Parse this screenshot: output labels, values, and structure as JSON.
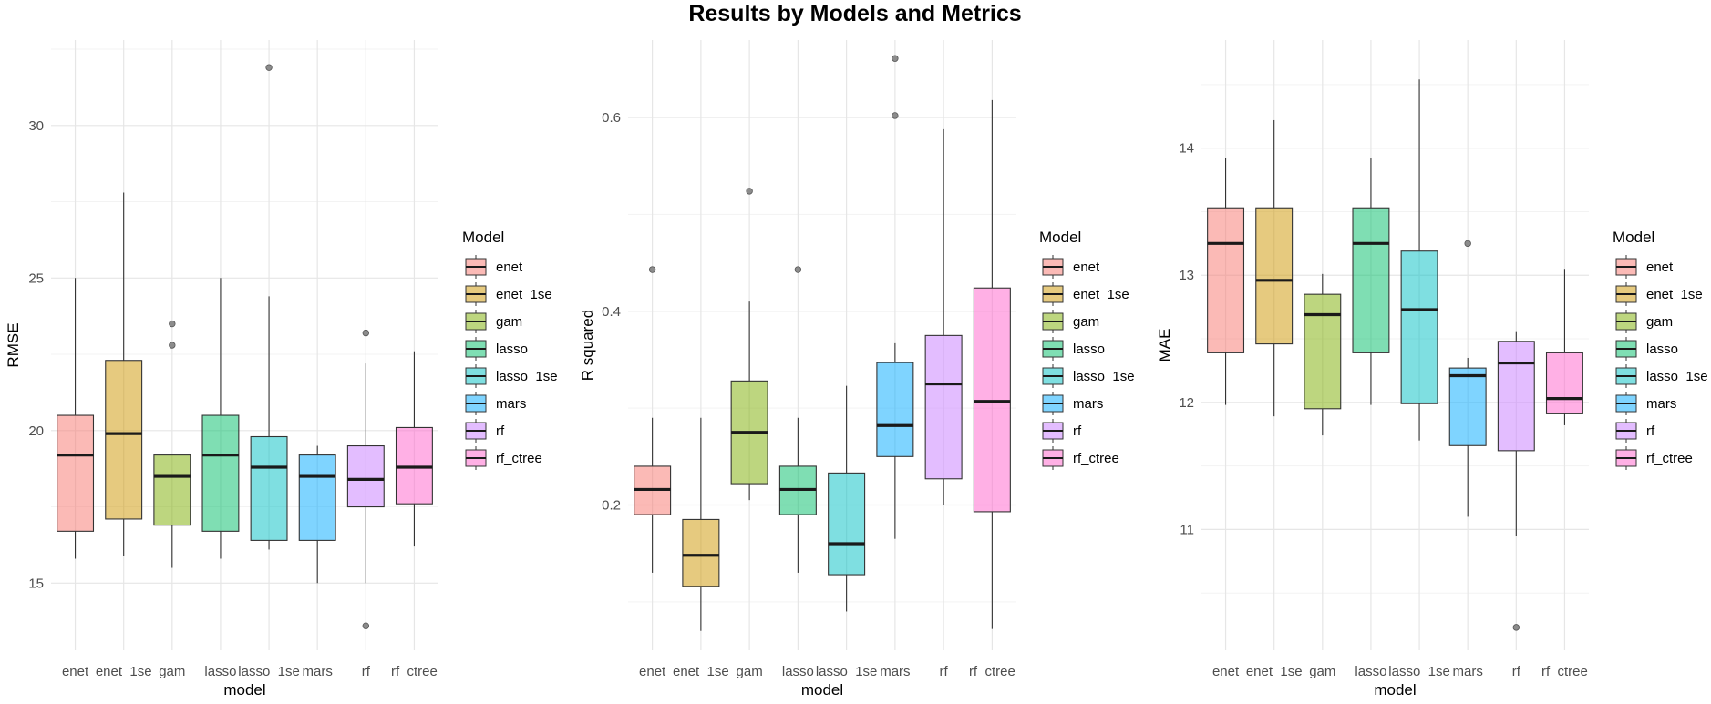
{
  "title": "Results by Models and Metrics",
  "legend_title": "Model",
  "colors": {
    "enet": "#F8766D",
    "enet_1se": "#CD9600",
    "gam": "#7CAE00",
    "lasso": "#00BE67",
    "lasso_1se": "#00BFC4",
    "mars": "#00A9FF",
    "rf": "#C77CFF",
    "rf_ctree": "#FF61CC"
  },
  "chart_data": [
    {
      "type": "box",
      "xlabel": "model",
      "ylabel": "RMSE",
      "ylim": [
        12.8,
        32.8
      ],
      "yticks": [
        15,
        20,
        25,
        30
      ],
      "grid": true,
      "legend_position": "right",
      "categories": [
        "enet",
        "enet_1se",
        "gam",
        "lasso",
        "lasso_1se",
        "mars",
        "rf",
        "rf_ctree"
      ],
      "boxes": [
        {
          "min": 15.8,
          "q1": 16.7,
          "median": 19.2,
          "q3": 20.5,
          "max": 25.0,
          "outliers": []
        },
        {
          "min": 15.9,
          "q1": 17.1,
          "median": 19.9,
          "q3": 22.3,
          "max": 27.8,
          "outliers": []
        },
        {
          "min": 15.5,
          "q1": 16.9,
          "median": 18.5,
          "q3": 19.2,
          "max": 19.2,
          "outliers": [
            22.8,
            23.5
          ]
        },
        {
          "min": 15.8,
          "q1": 16.7,
          "median": 19.2,
          "q3": 20.5,
          "max": 25.0,
          "outliers": []
        },
        {
          "min": 16.1,
          "q1": 16.4,
          "median": 18.8,
          "q3": 19.8,
          "max": 24.4,
          "outliers": [
            31.9
          ]
        },
        {
          "min": 15.0,
          "q1": 16.4,
          "median": 18.5,
          "q3": 19.2,
          "max": 19.5,
          "outliers": []
        },
        {
          "min": 15.0,
          "q1": 17.5,
          "median": 18.4,
          "q3": 19.5,
          "max": 22.2,
          "outliers": [
            13.6,
            23.2
          ]
        },
        {
          "min": 16.2,
          "q1": 17.6,
          "median": 18.8,
          "q3": 20.1,
          "max": 22.6,
          "outliers": []
        }
      ]
    },
    {
      "type": "box",
      "xlabel": "model",
      "ylabel": "R squared",
      "ylim": [
        0.05,
        0.68
      ],
      "yticks": [
        0.2,
        0.4,
        0.6
      ],
      "grid": true,
      "legend_position": "right",
      "categories": [
        "enet",
        "enet_1se",
        "gam",
        "lasso",
        "lasso_1se",
        "mars",
        "rf",
        "rf_ctree"
      ],
      "boxes": [
        {
          "min": 0.13,
          "q1": 0.19,
          "median": 0.216,
          "q3": 0.24,
          "max": 0.29,
          "outliers": [
            0.443
          ]
        },
        {
          "min": 0.07,
          "q1": 0.116,
          "median": 0.148,
          "q3": 0.185,
          "max": 0.29,
          "outliers": []
        },
        {
          "min": 0.205,
          "q1": 0.222,
          "median": 0.275,
          "q3": 0.328,
          "max": 0.41,
          "outliers": [
            0.524
          ]
        },
        {
          "min": 0.13,
          "q1": 0.19,
          "median": 0.216,
          "q3": 0.24,
          "max": 0.29,
          "outliers": [
            0.443
          ]
        },
        {
          "min": 0.09,
          "q1": 0.128,
          "median": 0.16,
          "q3": 0.233,
          "max": 0.323,
          "outliers": []
        },
        {
          "min": 0.165,
          "q1": 0.25,
          "median": 0.282,
          "q3": 0.347,
          "max": 0.367,
          "outliers": [
            0.602,
            0.661
          ]
        },
        {
          "min": 0.2,
          "q1": 0.227,
          "median": 0.325,
          "q3": 0.375,
          "max": 0.588,
          "outliers": []
        },
        {
          "min": 0.072,
          "q1": 0.193,
          "median": 0.307,
          "q3": 0.424,
          "max": 0.618,
          "outliers": []
        }
      ]
    },
    {
      "type": "box",
      "xlabel": "model",
      "ylabel": "MAE",
      "ylim": [
        10.05,
        14.85
      ],
      "yticks": [
        11,
        12,
        13,
        14
      ],
      "grid": true,
      "legend_position": "right",
      "categories": [
        "enet",
        "enet_1se",
        "gam",
        "lasso",
        "lasso_1se",
        "mars",
        "rf",
        "rf_ctree"
      ],
      "boxes": [
        {
          "min": 11.98,
          "q1": 12.39,
          "median": 13.25,
          "q3": 13.53,
          "max": 13.92,
          "outliers": []
        },
        {
          "min": 11.89,
          "q1": 12.46,
          "median": 12.96,
          "q3": 13.53,
          "max": 14.22,
          "outliers": []
        },
        {
          "min": 11.74,
          "q1": 11.95,
          "median": 12.69,
          "q3": 12.85,
          "max": 13.01,
          "outliers": []
        },
        {
          "min": 11.98,
          "q1": 12.39,
          "median": 13.25,
          "q3": 13.53,
          "max": 13.92,
          "outliers": []
        },
        {
          "min": 11.7,
          "q1": 11.99,
          "median": 12.73,
          "q3": 13.19,
          "max": 14.54,
          "outliers": []
        },
        {
          "min": 11.1,
          "q1": 11.66,
          "median": 12.21,
          "q3": 12.27,
          "max": 12.35,
          "outliers": [
            13.25
          ]
        },
        {
          "min": 10.95,
          "q1": 11.62,
          "median": 12.31,
          "q3": 12.48,
          "max": 12.56,
          "outliers": [
            10.23
          ]
        },
        {
          "min": 11.82,
          "q1": 11.91,
          "median": 12.03,
          "q3": 12.39,
          "max": 13.05,
          "outliers": []
        }
      ]
    }
  ]
}
